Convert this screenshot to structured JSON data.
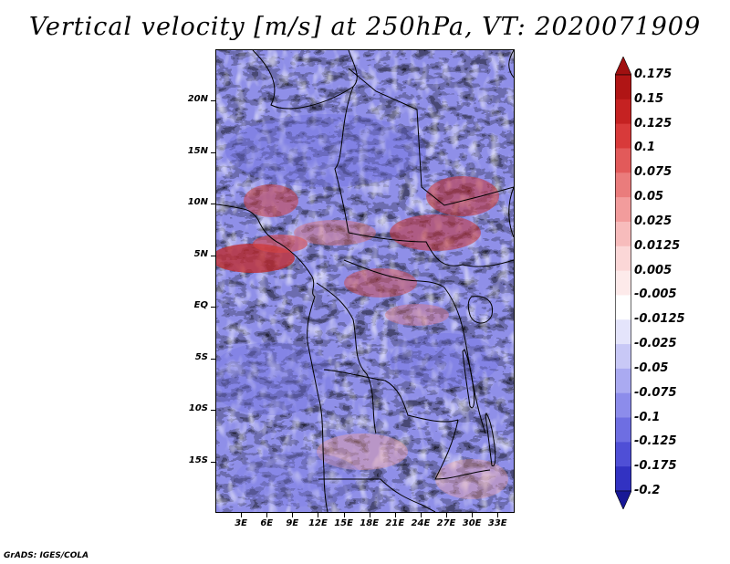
{
  "title": "Vertical velocity [m/s] at 250hPa, VT: 2020071909",
  "footer": "GrADS: IGES/COLA",
  "map": {
    "lat_range": [
      -20,
      25
    ],
    "lon_range": [
      0,
      35
    ],
    "lat_ticks": [
      {
        "value": 20,
        "label": "20N"
      },
      {
        "value": 15,
        "label": "15N"
      },
      {
        "value": 10,
        "label": "10N"
      },
      {
        "value": 5,
        "label": "5N"
      },
      {
        "value": 0,
        "label": "EQ"
      },
      {
        "value": -5,
        "label": "5S"
      },
      {
        "value": -10,
        "label": "10S"
      },
      {
        "value": -15,
        "label": "15S"
      }
    ],
    "lon_ticks": [
      {
        "value": 3,
        "label": "3E"
      },
      {
        "value": 6,
        "label": "6E"
      },
      {
        "value": 9,
        "label": "9E"
      },
      {
        "value": 12,
        "label": "12E"
      },
      {
        "value": 15,
        "label": "15E"
      },
      {
        "value": 18,
        "label": "18E"
      },
      {
        "value": 21,
        "label": "21E"
      },
      {
        "value": 24,
        "label": "24E"
      },
      {
        "value": 27,
        "label": "27E"
      },
      {
        "value": 30,
        "label": "30E"
      },
      {
        "value": 33,
        "label": "33E"
      }
    ]
  },
  "colorbar": {
    "levels": [
      {
        "label": "0.175",
        "color": "#b01515"
      },
      {
        "label": "0.15",
        "color": "#c52222"
      },
      {
        "label": "0.125",
        "color": "#d83a3a"
      },
      {
        "label": "0.1",
        "color": "#e25a5a"
      },
      {
        "label": "0.075",
        "color": "#ea7c7c"
      },
      {
        "label": "0.05",
        "color": "#f29c9c"
      },
      {
        "label": "0.025",
        "color": "#f7bcbc"
      },
      {
        "label": "0.0125",
        "color": "#fbd7d7"
      },
      {
        "label": "0.005",
        "color": "#fdeaea"
      },
      {
        "label": "-0.005",
        "color": "#ffffff"
      },
      {
        "label": "-0.0125",
        "color": "#e4e4fb"
      },
      {
        "label": "-0.025",
        "color": "#c8c8f6"
      },
      {
        "label": "-0.05",
        "color": "#aaaaf1"
      },
      {
        "label": "-0.075",
        "color": "#8c8ceb"
      },
      {
        "label": "-0.1",
        "color": "#6e6ee2"
      },
      {
        "label": "-0.125",
        "color": "#4f4fd6"
      },
      {
        "label": "-0.175",
        "color": "#3232c2"
      },
      {
        "label": "-0.2",
        "color": "#2020a6"
      }
    ],
    "over_color": "#a01010",
    "under_color": "#181896",
    "neutral_color": "#fefefe"
  }
}
